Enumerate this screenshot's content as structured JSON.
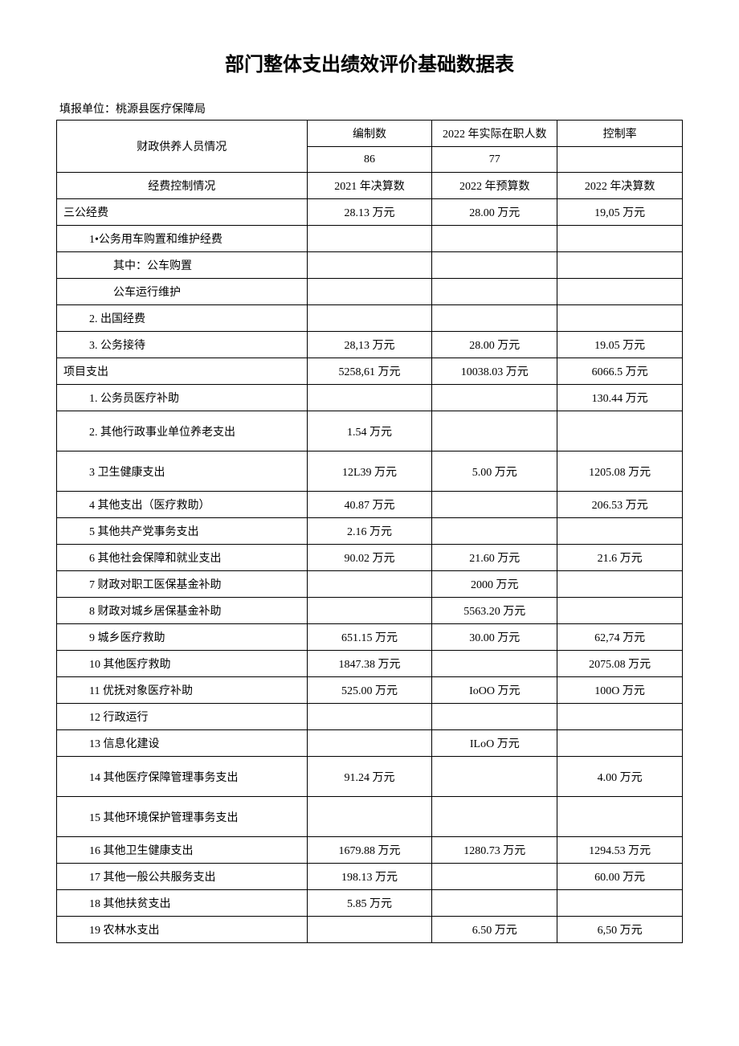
{
  "title": "部门整体支出绩效评价基础数据表",
  "subtitle": "填报单位：桃源县医疗保障局",
  "headers": {
    "row1_col1": "财政供养人员情况",
    "row1_col2": "编制数",
    "row1_col3": "2022 年实际在职人数",
    "row1_col4": "控制率",
    "row2_col2": "86",
    "row2_col3": "77",
    "row2_col4": "",
    "row3_col1": "经费控制情况",
    "row3_col2": "2021 年决算数",
    "row3_col3": "2022 年预算数",
    "row3_col4": "2022 年决算数"
  },
  "rows": [
    {
      "label": "三公经费",
      "indent": 0,
      "c2": "28.13 万元",
      "c3": "28.00 万元",
      "c4": "19,05 万元"
    },
    {
      "label": "1•公务用车购置和维护经费",
      "indent": 1,
      "c2": "",
      "c3": "",
      "c4": ""
    },
    {
      "label": "其中：公车购置",
      "indent": 2,
      "c2": "",
      "c3": "",
      "c4": ""
    },
    {
      "label": "公车运行维护",
      "indent": 2,
      "c2": "",
      "c3": "",
      "c4": ""
    },
    {
      "label": "2. 出国经费",
      "indent": 1,
      "c2": "",
      "c3": "",
      "c4": ""
    },
    {
      "label": "3. 公务接待",
      "indent": 1,
      "c2": "28,13 万元",
      "c3": "28.00 万元",
      "c4": "19.05 万元"
    },
    {
      "label": "项目支出",
      "indent": 0,
      "c2": "5258,61 万元",
      "c3": "10038.03 万元",
      "c4": "6066.5 万元"
    },
    {
      "label": "1. 公务员医疗补助",
      "indent": 1,
      "c2": "",
      "c3": "",
      "c4": "130.44 万元"
    },
    {
      "label": "2. 其他行政事业单位养老支出",
      "indent": 1,
      "c2": "1.54 万元",
      "c3": "",
      "c4": "",
      "tall": true
    },
    {
      "label": "3 卫生健康支出",
      "indent": 1,
      "c2": "12L39 万元",
      "c3": "5.00 万元",
      "c4": "1205.08 万元",
      "tall": true
    },
    {
      "label": "4 其他支出（医疗救助）",
      "indent": 1,
      "c2": "40.87 万元",
      "c3": "",
      "c4": "206.53 万元"
    },
    {
      "label": "5 其他共产党事务支出",
      "indent": 1,
      "c2": "2.16 万元",
      "c3": "",
      "c4": ""
    },
    {
      "label": "6 其他社会保障和就业支出",
      "indent": 1,
      "c2": "90.02 万元",
      "c3": "21.60 万元",
      "c4": "21.6 万元"
    },
    {
      "label": "7 财政对职工医保基金补助",
      "indent": 1,
      "c2": "",
      "c3": "2000 万元",
      "c4": ""
    },
    {
      "label": "8 财政对城乡居保基金补助",
      "indent": 1,
      "c2": "",
      "c3": "5563.20 万元",
      "c4": ""
    },
    {
      "label": "9 城乡医疗救助",
      "indent": 1,
      "c2": "651.15 万元",
      "c3": "30.00 万元",
      "c4": "62,74 万元"
    },
    {
      "label": "10 其他医疗救助",
      "indent": 1,
      "c2": "1847.38 万元",
      "c3": "",
      "c4": "2075.08 万元"
    },
    {
      "label": "11 优抚对象医疗补助",
      "indent": 1,
      "c2": "525.00 万元",
      "c3": "IoOO 万元",
      "c4": "100O 万元"
    },
    {
      "label": "12 行政运行",
      "indent": 1,
      "c2": "",
      "c3": "",
      "c4": ""
    },
    {
      "label": "13 信息化建设",
      "indent": 1,
      "c2": "",
      "c3": "ILoO 万元",
      "c4": ""
    },
    {
      "label": "14 其他医疗保障管理事务支出",
      "indent": 1,
      "c2": "91.24 万元",
      "c3": "",
      "c4": "4.00 万元",
      "tall": true
    },
    {
      "label": "15 其他环境保护管理事务支出",
      "indent": 1,
      "c2": "",
      "c3": "",
      "c4": "",
      "tall": true
    },
    {
      "label": "16 其他卫生健康支出",
      "indent": 1,
      "c2": "1679.88 万元",
      "c3": "1280.73 万元",
      "c4": "1294.53 万元"
    },
    {
      "label": "17 其他一般公共服务支出",
      "indent": 1,
      "c2": "198.13 万元",
      "c3": "",
      "c4": "60.00 万元"
    },
    {
      "label": "18 其他扶贫支出",
      "indent": 1,
      "c2": "5.85 万元",
      "c3": "",
      "c4": ""
    },
    {
      "label": "19 农林水支出",
      "indent": 1,
      "c2": "",
      "c3": "6.50 万元",
      "c4": "6,50 万元"
    }
  ],
  "colors": {
    "text": "#000000",
    "border": "#000000",
    "background": "#ffffff"
  }
}
